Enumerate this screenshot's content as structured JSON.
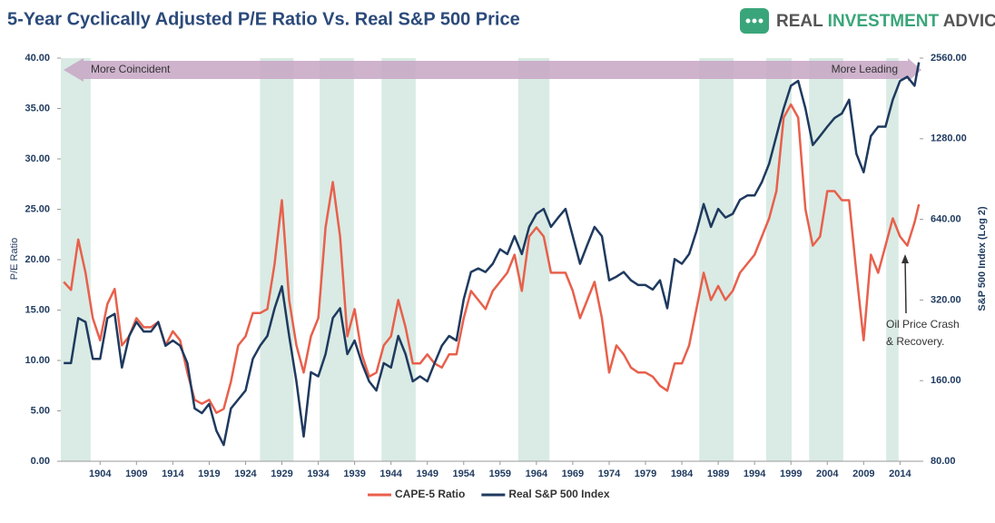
{
  "chart_data": {
    "type": "line",
    "title": "5-Year Cyclically Adjusted P/E Ratio Vs. Real S&P 500 Price",
    "brand": {
      "part1": "REAL",
      "part2": "INVESTMENT",
      "part3": "ADVICE"
    },
    "y_label": "P/E Ratio",
    "y2_label": "S&P 500 Index (Log 2)",
    "annotations": {
      "left_arrow": "More Coincident",
      "right_arrow": "More Leading",
      "note_line1": "Oil Price Crash",
      "note_line2": "& Recovery."
    },
    "y2log": true,
    "grid": false,
    "xlim": [
      1898.6,
      2016.7
    ],
    "xticks": [
      1904,
      1909,
      1914,
      1919,
      1924,
      1929,
      1934,
      1939,
      1944,
      1949,
      1954,
      1959,
      1964,
      1969,
      1974,
      1979,
      1984,
      1989,
      1994,
      1999,
      2004,
      2009,
      2014
    ],
    "ylim": [
      0,
      40
    ],
    "yticks": [
      {
        "value": 0,
        "label": "0.00"
      },
      {
        "value": 5,
        "label": "5.00"
      },
      {
        "value": 10,
        "label": "10.00"
      },
      {
        "value": 15,
        "label": "15.00"
      },
      {
        "value": 20,
        "label": "20.00"
      },
      {
        "value": 25,
        "label": "25.00"
      },
      {
        "value": 30,
        "label": "30.00"
      },
      {
        "value": 35,
        "label": "35.00"
      },
      {
        "value": 40,
        "label": "40.00"
      }
    ],
    "y2lim": [
      80,
      2560
    ],
    "y2ticks": [
      {
        "value": 80,
        "label": "80.00"
      },
      {
        "value": 160,
        "label": "160.00"
      },
      {
        "value": 320,
        "label": "320.00"
      },
      {
        "value": 640,
        "label": "640.00"
      },
      {
        "value": 1280,
        "label": "1280.00"
      },
      {
        "value": 2560,
        "label": "2560.00"
      }
    ],
    "shaded_regions": [
      [
        1898.6,
        1902.7
      ],
      [
        1926.0,
        1930.6
      ],
      [
        1934.2,
        1938.9
      ],
      [
        1942.7,
        1947.4
      ],
      [
        1961.5,
        1965.8
      ],
      [
        1986.4,
        1991.1
      ],
      [
        1995.6,
        1999.1
      ],
      [
        2001.5,
        2006.2
      ],
      [
        2012.1,
        2013.8
      ]
    ],
    "shade_color": "#cfe6dd",
    "x": [
      1899,
      1900,
      1901,
      1902,
      1903,
      1904,
      1905,
      1906,
      1907,
      1908,
      1909,
      1910,
      1911,
      1912,
      1913,
      1914,
      1915,
      1916,
      1917,
      1918,
      1919,
      1920,
      1921,
      1922,
      1923,
      1924,
      1925,
      1926,
      1927,
      1928,
      1929,
      1930,
      1931,
      1932,
      1933,
      1934,
      1935,
      1936,
      1937,
      1938,
      1939,
      1940,
      1941,
      1942,
      1943,
      1944,
      1945,
      1946,
      1947,
      1948,
      1949,
      1950,
      1951,
      1952,
      1953,
      1954,
      1955,
      1956,
      1957,
      1958,
      1959,
      1960,
      1961,
      1962,
      1963,
      1964,
      1965,
      1966,
      1967,
      1968,
      1969,
      1970,
      1971,
      1972,
      1973,
      1974,
      1975,
      1976,
      1977,
      1978,
      1979,
      1980,
      1981,
      1982,
      1983,
      1984,
      1985,
      1986,
      1987,
      1988,
      1989,
      1990,
      1991,
      1992,
      1993,
      1994,
      1995,
      1996,
      1997,
      1998,
      1999,
      2000,
      2001,
      2002,
      2003,
      2004,
      2005,
      2006,
      2007,
      2008,
      2009,
      2010,
      2011,
      2012,
      2013,
      2014,
      2015,
      2016,
      2016.6
    ],
    "series": [
      {
        "name": "CAPE-5 Ratio",
        "color": "#e8604c",
        "values": [
          17.8,
          17,
          22,
          18.7,
          14.2,
          12,
          15.6,
          17.1,
          11.5,
          12.4,
          14.2,
          13.3,
          13.3,
          13.8,
          11.5,
          12.9,
          12,
          8.8,
          6.1,
          5.7,
          6.1,
          4.8,
          5.2,
          7.9,
          11.5,
          12.4,
          14.7,
          14.7,
          15.1,
          19.6,
          25.9,
          16,
          11.5,
          8.8,
          12.4,
          14.2,
          23.2,
          27.7,
          22.3,
          12.4,
          15.1,
          10.6,
          8.4,
          8.8,
          11.5,
          12.4,
          16,
          13.3,
          9.7,
          9.7,
          10.6,
          9.7,
          9.3,
          10.6,
          10.6,
          14.2,
          16.9,
          16,
          15.1,
          16.9,
          17.8,
          18.7,
          20.5,
          16.9,
          22.3,
          23.2,
          22.3,
          18.7,
          18.7,
          18.7,
          16.9,
          14.2,
          16,
          17.8,
          14.2,
          8.8,
          11.5,
          10.6,
          9.3,
          8.8,
          8.8,
          8.4,
          7.5,
          7.0,
          9.7,
          9.7,
          11.5,
          15.1,
          18.7,
          16,
          17.4,
          16,
          16.9,
          18.7,
          19.6,
          20.5,
          22.3,
          24.1,
          26.8,
          34.1,
          35.4,
          34.1,
          25,
          21.4,
          22.3,
          26.8,
          26.8,
          25.9,
          25.9,
          18.7,
          12,
          20.5,
          18.7,
          21.4,
          24.1,
          22.3,
          21.4,
          23.7,
          25.5
        ]
      },
      {
        "name": "Real S&P 500 Index",
        "color": "#1f3a5f",
        "axis": "y2",
        "values": [
          186,
          186,
          274,
          265,
          193,
          193,
          274,
          284,
          179,
          235,
          265,
          244,
          244,
          265,
          216,
          226,
          216,
          186,
          126,
          121,
          131,
          104,
          92,
          126,
          136,
          147,
          193,
          216,
          235,
          298,
          360,
          235,
          159,
          99,
          172,
          166,
          201,
          274,
          298,
          201,
          226,
          186,
          159,
          147,
          186,
          179,
          235,
          201,
          159,
          166,
          159,
          186,
          216,
          235,
          226,
          322,
          407,
          420,
          407,
          437,
          495,
          475,
          554,
          475,
          600,
          671,
          700,
          600,
          650,
          700,
          554,
          437,
          514,
          600,
          554,
          379,
          391,
          407,
          379,
          364,
          364,
          350,
          379,
          298,
          455,
          437,
          475,
          577,
          730,
          600,
          700,
          650,
          671,
          757,
          786,
          786,
          882,
          1033,
          1310,
          1660,
          2020,
          2104,
          1660,
          1213,
          1310,
          1420,
          1530,
          1590,
          1790,
          1125,
          960,
          1310,
          1420,
          1420,
          1790,
          2104,
          2180,
          2020,
          2470
        ]
      }
    ]
  }
}
